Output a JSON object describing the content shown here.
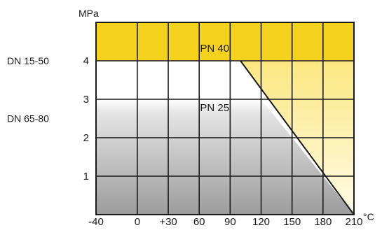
{
  "chart_data": {
    "type": "area",
    "title": "",
    "xlabel": "°C",
    "ylabel": "MPa",
    "xlim": [
      -40,
      210
    ],
    "ylim": [
      0,
      5
    ],
    "x_ticks": [
      "-40",
      "0",
      "+30",
      "60",
      "90",
      "120",
      "150",
      "180",
      "210"
    ],
    "x_tick_values": [
      -40,
      0,
      30,
      60,
      90,
      120,
      150,
      180,
      210
    ],
    "y_ticks": [
      "1",
      "2",
      "3",
      "4"
    ],
    "y_tick_values": [
      1,
      2,
      3,
      4
    ],
    "grid": true,
    "series": [
      {
        "name": "PN 40",
        "x": [
          -40,
          100,
          210
        ],
        "y": [
          4,
          4,
          0
        ],
        "color": "#f5d21e"
      },
      {
        "name": "PN 25",
        "x": [
          -40,
          120,
          210
        ],
        "y": [
          3,
          3,
          0
        ],
        "color": "#a9a9a9"
      }
    ],
    "region_labels": [
      {
        "text": "PN 40",
        "x": 75,
        "y": 4.35
      },
      {
        "text": "PN 25",
        "x": 75,
        "y": 2.8
      }
    ],
    "side_labels": [
      {
        "text": "DN 15-50",
        "y": 4
      },
      {
        "text": "DN 65-80",
        "y": 2.5
      }
    ]
  }
}
